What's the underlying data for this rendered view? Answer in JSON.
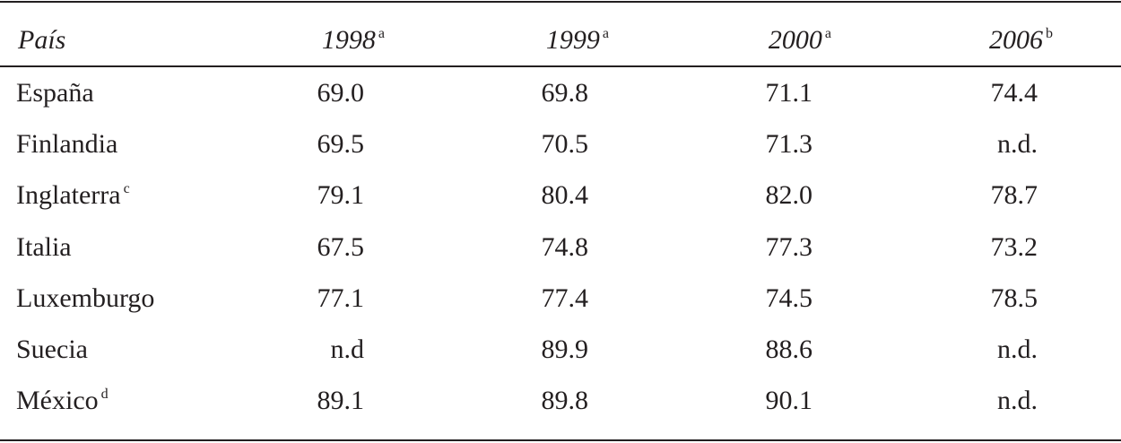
{
  "table": {
    "header": [
      {
        "text": "País"
      },
      {
        "text": "1998",
        "note": "a"
      },
      {
        "text": "1999",
        "note": "a"
      },
      {
        "text": "2000",
        "note": "a"
      },
      {
        "text": "2006",
        "note": "b"
      }
    ],
    "rows": [
      {
        "country": "España",
        "values": [
          "69.0",
          "69.8",
          "71.1",
          "74.4"
        ]
      },
      {
        "country": "Finlandia",
        "values": [
          "69.5",
          "70.5",
          "71.3",
          "n.d."
        ]
      },
      {
        "country": "Inglaterra",
        "note": "c",
        "values": [
          "79.1",
          "80.4",
          "82.0",
          "78.7"
        ]
      },
      {
        "country": "Italia",
        "values": [
          "67.5",
          "74.8",
          "77.3",
          "73.2"
        ]
      },
      {
        "country": "Luxemburgo",
        "values": [
          "77.1",
          "77.4",
          "74.5",
          "78.5"
        ]
      },
      {
        "country": "Suecia",
        "values": [
          "n.d",
          "89.9",
          "88.6",
          "n.d."
        ]
      },
      {
        "country": "México",
        "note": "d",
        "values": [
          "89.1",
          "89.8",
          "90.1",
          "n.d."
        ]
      }
    ]
  }
}
